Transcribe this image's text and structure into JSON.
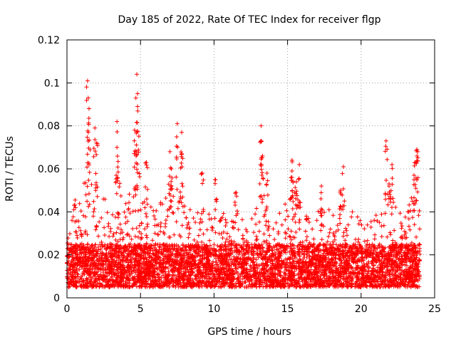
{
  "chart_data": {
    "type": "scatter",
    "title": "Day 185 of 2022, Rate Of TEC Index for receiver flgp",
    "xlabel": "GPS time / hours",
    "ylabel": "ROTI / TECUs",
    "xlim": [
      0,
      25
    ],
    "ylim": [
      0,
      0.12
    ],
    "x_ticks": [
      "0",
      "5",
      "10",
      "15",
      "20",
      "25"
    ],
    "y_ticks": [
      "0",
      "0.02",
      "0.04",
      "0.06",
      "0.08",
      "0.1",
      "0.12"
    ],
    "grid": true,
    "marker": "plus",
    "color": "#ff0000",
    "series_name": "ROTI",
    "x_range_hours": [
      0,
      24
    ],
    "baseline_band": [
      0.005,
      0.025
    ],
    "peaks": [
      {
        "x": 1.4,
        "y": 0.101
      },
      {
        "x": 1.5,
        "y": 0.088
      },
      {
        "x": 1.45,
        "y": 0.077
      },
      {
        "x": 1.9,
        "y": 0.079
      },
      {
        "x": 2.0,
        "y": 0.072
      },
      {
        "x": 3.4,
        "y": 0.082
      },
      {
        "x": 3.4,
        "y": 0.07
      },
      {
        "x": 4.75,
        "y": 0.104
      },
      {
        "x": 4.8,
        "y": 0.095
      },
      {
        "x": 4.8,
        "y": 0.089
      },
      {
        "x": 4.6,
        "y": 0.078
      },
      {
        "x": 4.7,
        "y": 0.066
      },
      {
        "x": 5.4,
        "y": 0.063
      },
      {
        "x": 7.0,
        "y": 0.068
      },
      {
        "x": 7.1,
        "y": 0.06
      },
      {
        "x": 7.5,
        "y": 0.081
      },
      {
        "x": 7.8,
        "y": 0.077
      },
      {
        "x": 7.8,
        "y": 0.067
      },
      {
        "x": 9.2,
        "y": 0.058
      },
      {
        "x": 10.1,
        "y": 0.055
      },
      {
        "x": 11.5,
        "y": 0.049
      },
      {
        "x": 13.2,
        "y": 0.08
      },
      {
        "x": 13.2,
        "y": 0.073
      },
      {
        "x": 13.3,
        "y": 0.066
      },
      {
        "x": 13.6,
        "y": 0.058
      },
      {
        "x": 15.3,
        "y": 0.064
      },
      {
        "x": 15.3,
        "y": 0.059
      },
      {
        "x": 15.8,
        "y": 0.062
      },
      {
        "x": 15.6,
        "y": 0.054
      },
      {
        "x": 17.3,
        "y": 0.052
      },
      {
        "x": 18.8,
        "y": 0.061
      },
      {
        "x": 18.6,
        "y": 0.05
      },
      {
        "x": 21.7,
        "y": 0.073
      },
      {
        "x": 22.1,
        "y": 0.062
      },
      {
        "x": 21.9,
        "y": 0.053
      },
      {
        "x": 23.8,
        "y": 0.069
      },
      {
        "x": 23.8,
        "y": 0.066
      },
      {
        "x": 23.7,
        "y": 0.063
      },
      {
        "x": 23.6,
        "y": 0.057
      }
    ],
    "envelope": [
      {
        "x": 0.0,
        "y": 0.027
      },
      {
        "x": 0.5,
        "y": 0.045
      },
      {
        "x": 1.0,
        "y": 0.05
      },
      {
        "x": 1.5,
        "y": 0.062
      },
      {
        "x": 2.0,
        "y": 0.058
      },
      {
        "x": 2.5,
        "y": 0.048
      },
      {
        "x": 3.0,
        "y": 0.04
      },
      {
        "x": 3.5,
        "y": 0.055
      },
      {
        "x": 4.0,
        "y": 0.048
      },
      {
        "x": 4.5,
        "y": 0.055
      },
      {
        "x": 5.0,
        "y": 0.06
      },
      {
        "x": 5.5,
        "y": 0.045
      },
      {
        "x": 6.0,
        "y": 0.04
      },
      {
        "x": 6.5,
        "y": 0.048
      },
      {
        "x": 7.0,
        "y": 0.055
      },
      {
        "x": 7.5,
        "y": 0.058
      },
      {
        "x": 8.0,
        "y": 0.045
      },
      {
        "x": 8.5,
        "y": 0.04
      },
      {
        "x": 9.0,
        "y": 0.043
      },
      {
        "x": 9.5,
        "y": 0.04
      },
      {
        "x": 10.0,
        "y": 0.045
      },
      {
        "x": 10.5,
        "y": 0.04
      },
      {
        "x": 11.0,
        "y": 0.038
      },
      {
        "x": 11.5,
        "y": 0.04
      },
      {
        "x": 12.0,
        "y": 0.036
      },
      {
        "x": 12.5,
        "y": 0.04
      },
      {
        "x": 13.0,
        "y": 0.05
      },
      {
        "x": 13.5,
        "y": 0.048
      },
      {
        "x": 14.0,
        "y": 0.038
      },
      {
        "x": 14.5,
        "y": 0.04
      },
      {
        "x": 15.0,
        "y": 0.048
      },
      {
        "x": 15.5,
        "y": 0.05
      },
      {
        "x": 16.0,
        "y": 0.045
      },
      {
        "x": 16.5,
        "y": 0.036
      },
      {
        "x": 17.0,
        "y": 0.04
      },
      {
        "x": 17.5,
        "y": 0.043
      },
      {
        "x": 18.0,
        "y": 0.04
      },
      {
        "x": 18.5,
        "y": 0.048
      },
      {
        "x": 19.0,
        "y": 0.045
      },
      {
        "x": 19.5,
        "y": 0.04
      },
      {
        "x": 20.0,
        "y": 0.036
      },
      {
        "x": 20.5,
        "y": 0.035
      },
      {
        "x": 21.0,
        "y": 0.04
      },
      {
        "x": 21.5,
        "y": 0.05
      },
      {
        "x": 22.0,
        "y": 0.052
      },
      {
        "x": 22.5,
        "y": 0.042
      },
      {
        "x": 23.0,
        "y": 0.04
      },
      {
        "x": 23.5,
        "y": 0.048
      },
      {
        "x": 24.0,
        "y": 0.045
      }
    ]
  }
}
